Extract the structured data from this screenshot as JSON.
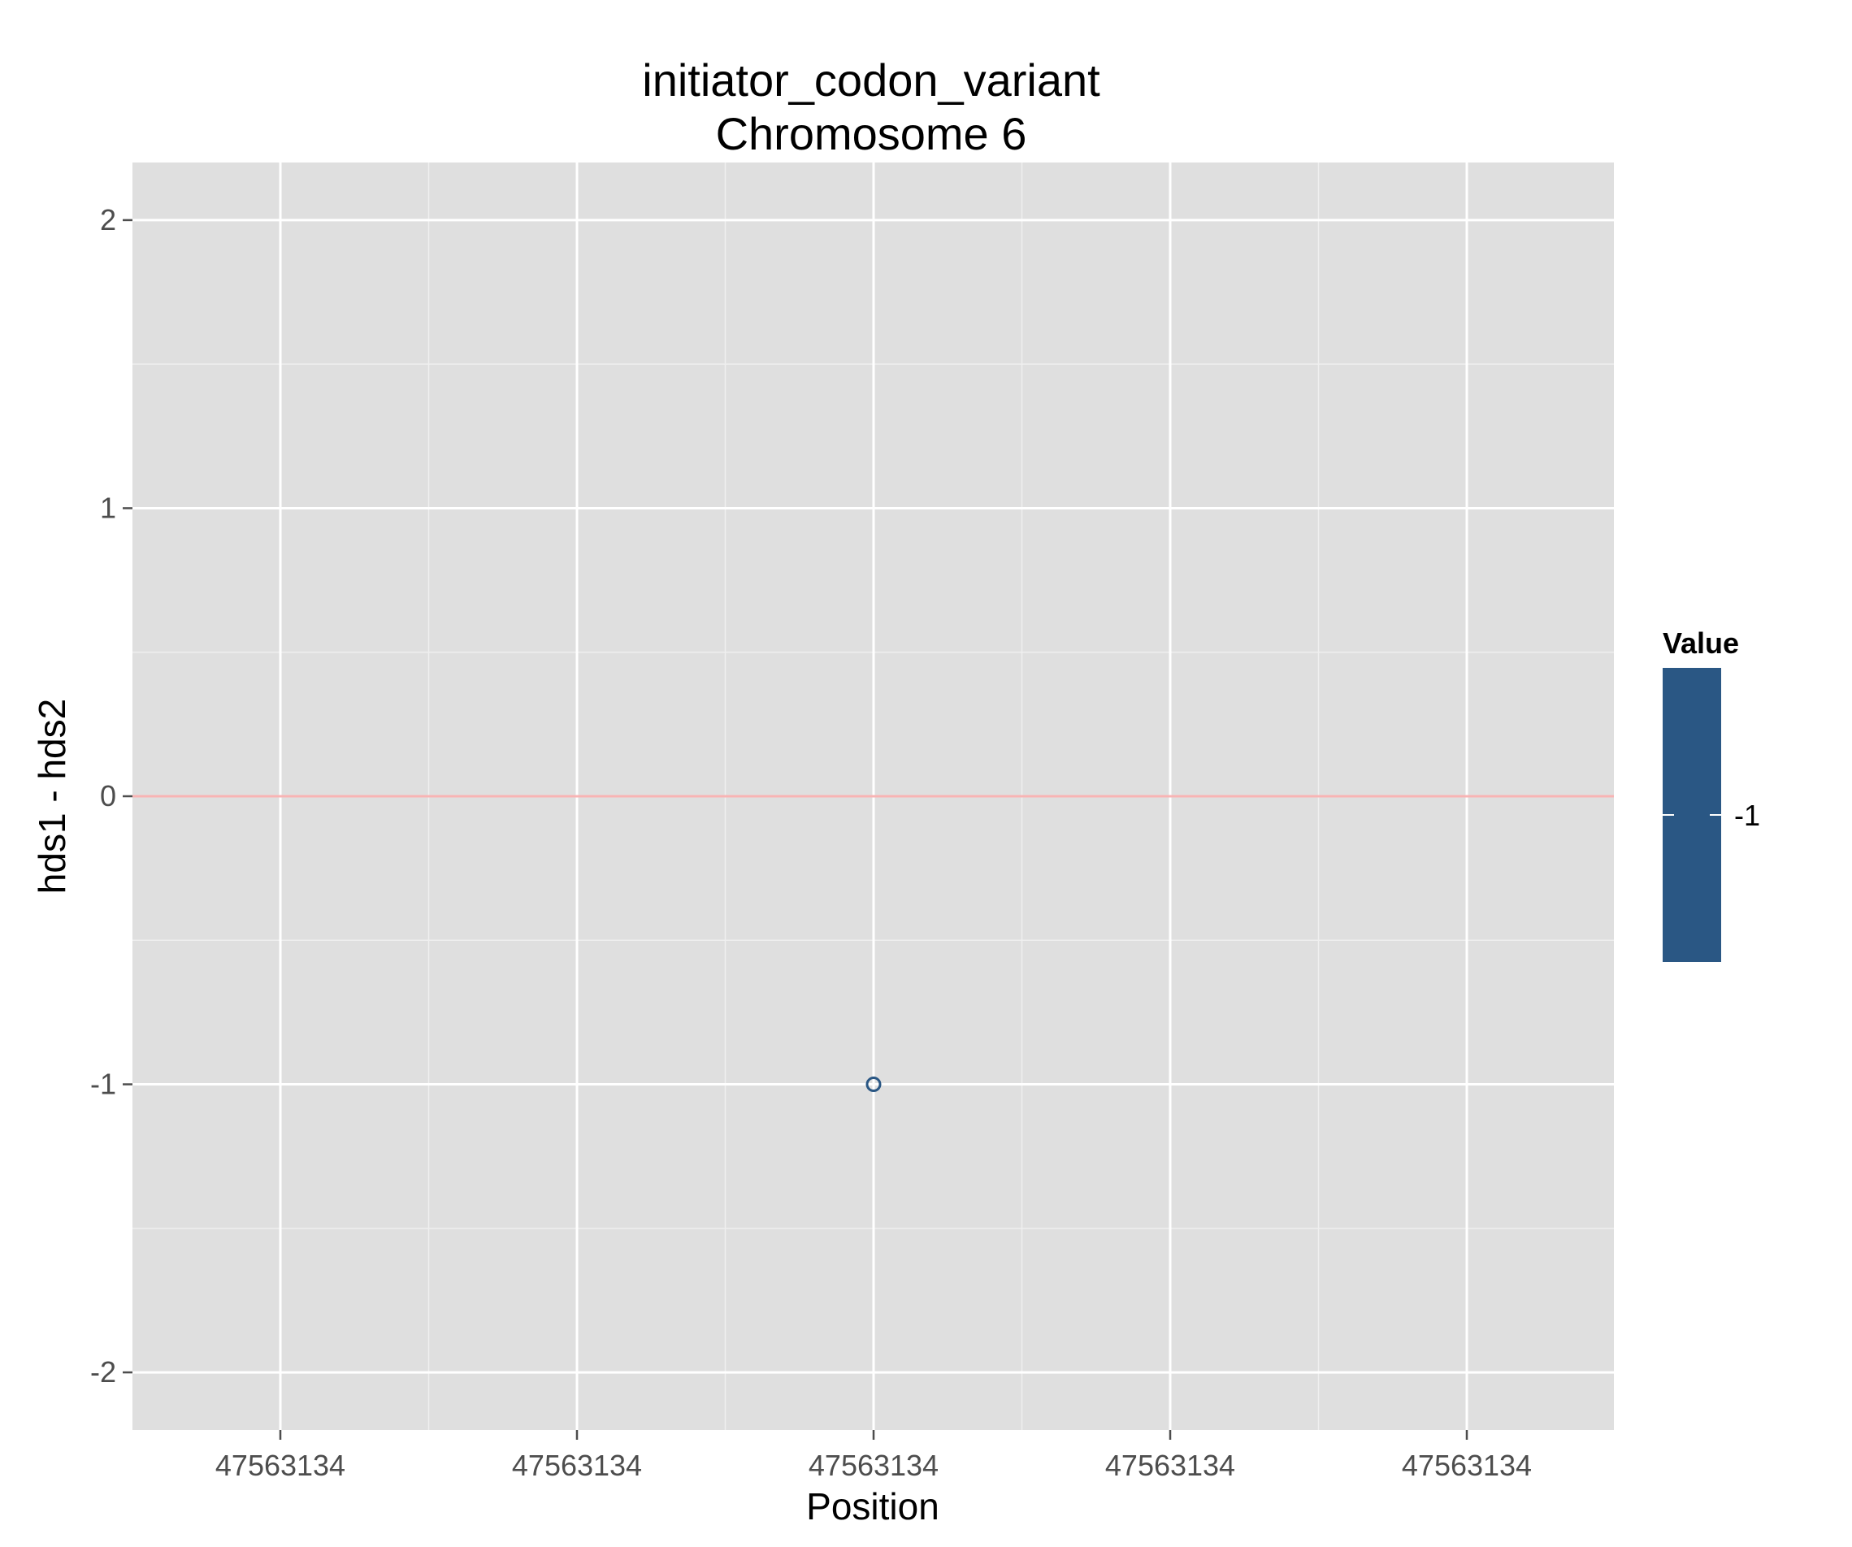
{
  "chart_data": {
    "type": "scatter",
    "title": [
      "initiator_codon_variant",
      "Chromosome 6"
    ],
    "xlabel": "Position",
    "ylabel": "hds1 - hds2",
    "x_tick_labels": [
      "47563134",
      "47563134",
      "47563134",
      "47563134",
      "47563134"
    ],
    "y_ticks": [
      -2,
      -1,
      0,
      1,
      2
    ],
    "ylim": [
      -2.2,
      2.2
    ],
    "reference_line": {
      "y": 0,
      "color": "#f8b4b4"
    },
    "points": [
      {
        "x": "47563134",
        "y": -1,
        "value": -1
      }
    ],
    "legend": {
      "title": "Value",
      "labels": [
        "-1"
      ],
      "color": "#2a5784",
      "placement": "right"
    },
    "grid": true,
    "panel_color": "#dfdfdf"
  }
}
